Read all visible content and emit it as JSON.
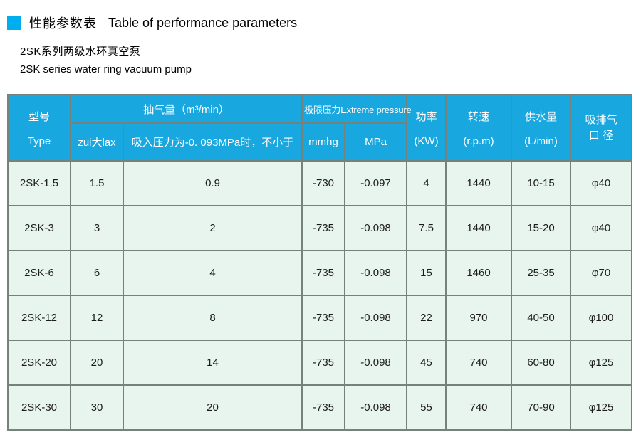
{
  "header": {
    "title_zh": "性能参数表",
    "title_en": "Table of performance parameters",
    "subtitle_zh": "2SK系列两级水环真空泵",
    "subtitle_en": "2SK series water ring vacuum pump"
  },
  "table": {
    "head": {
      "model_zh": "型号",
      "model_en": "Type",
      "pumping_capacity": "抽气量（m³/min）",
      "pumping_max": "zui大lax",
      "pumping_condition": "吸入压力为-0. 093MPa时，不小于",
      "extreme_pressure": "极限压力Extreme pressure",
      "unit_mmhg": "mmhg",
      "unit_mpa": "MPa",
      "power_zh": "功率",
      "power_unit": "(KW)",
      "speed_zh": "转速",
      "speed_unit": "(r.p.m)",
      "water_zh": "供水量",
      "water_unit": "(L/min)",
      "port_line1": "吸排气",
      "port_line2": "口 径"
    },
    "rows": [
      [
        "2SK-1.5",
        "1.5",
        "0.9",
        "-730",
        "-0.097",
        "4",
        "1440",
        "10-15",
        "φ40"
      ],
      [
        "2SK-3",
        "3",
        "2",
        "-735",
        "-0.098",
        "7.5",
        "1440",
        "15-20",
        "φ40"
      ],
      [
        "2SK-6",
        "6",
        "4",
        "-735",
        "-0.098",
        "15",
        "1460",
        "25-35",
        "φ70"
      ],
      [
        "2SK-12",
        "12",
        "8",
        "-735",
        "-0.098",
        "22",
        "970",
        "40-50",
        "φ100"
      ],
      [
        "2SK-20",
        "20",
        "14",
        "-735",
        "-0.098",
        "45",
        "740",
        "60-80",
        "φ125"
      ],
      [
        "2SK-30",
        "30",
        "20",
        "-735",
        "-0.098",
        "55",
        "740",
        "70-90",
        "φ125"
      ]
    ]
  },
  "colors": {
    "header_bg": "#19A7E0",
    "body_bg": "#E8F4EE",
    "border": "#75827C",
    "accent": "#00AEEF",
    "header_text": "#FFFFFF",
    "body_text": "#1C1C1C"
  }
}
